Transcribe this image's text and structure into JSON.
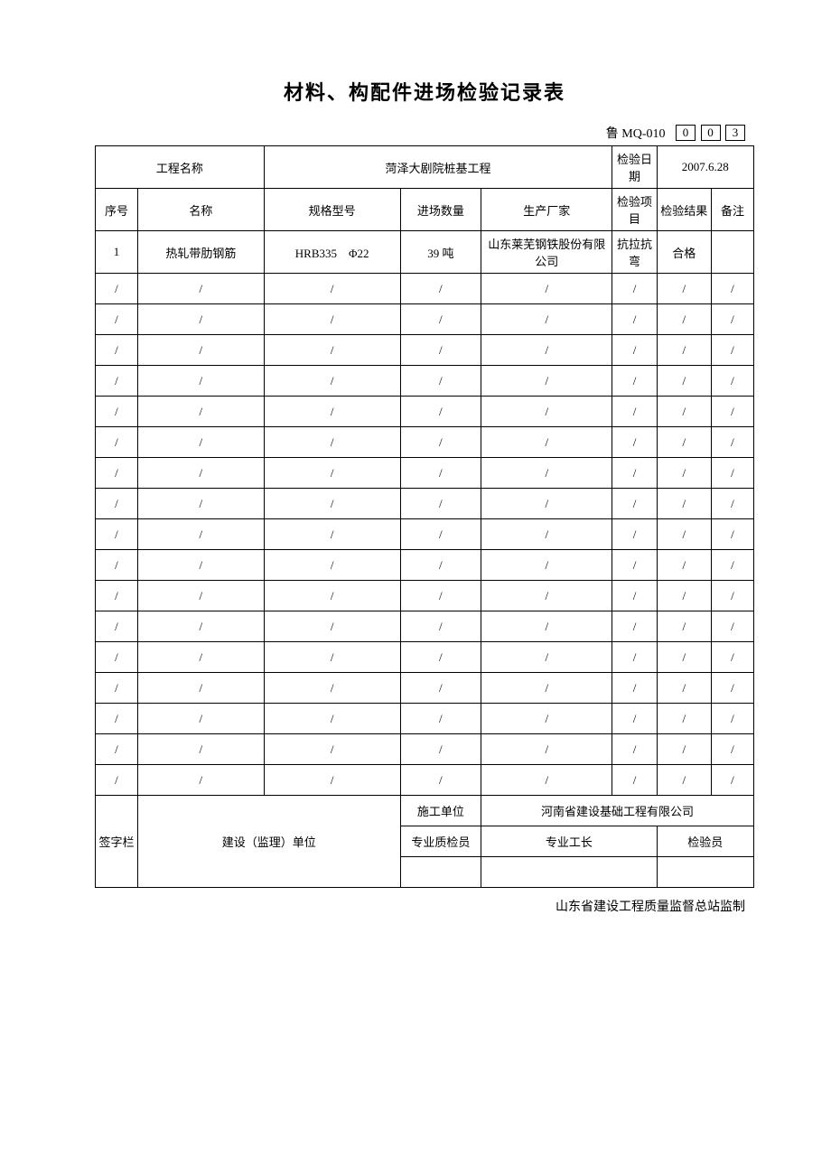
{
  "title": "材料、构配件进场检验记录表",
  "form_code_label": "鲁 MQ-010",
  "form_code_digits": [
    "0",
    "0",
    "3"
  ],
  "header": {
    "project_name_label": "工程名称",
    "project_name": "菏泽大剧院桩基工程",
    "inspect_date_label": "检验日期",
    "inspect_date": "2007.6.28"
  },
  "columns": {
    "seq": "序号",
    "name": "名称",
    "spec": "规格型号",
    "qty": "进场数量",
    "mfr": "生产厂家",
    "item": "检验项目",
    "result": "检验结果",
    "remark": "备注"
  },
  "rows": [
    {
      "seq": "1",
      "name": "热轧带肋钢筋",
      "spec": "HRB335　Φ22",
      "qty": "39 吨",
      "mfr": "山东莱芜钢铁股份有限公司",
      "item": "抗拉抗弯",
      "result": "合格",
      "remark": ""
    }
  ],
  "empty_row_count": 17,
  "slash": "/",
  "signature": {
    "section_label": "签字栏",
    "supervisor_label": "建设（监理）单位",
    "contractor_label": "施工单位",
    "contractor_name": "河南省建设基础工程有限公司",
    "qc_label": "专业质检员",
    "foreman_label": "专业工长",
    "inspector_label": "检验员"
  },
  "footer": "山东省建设工程质量监督总站监制"
}
